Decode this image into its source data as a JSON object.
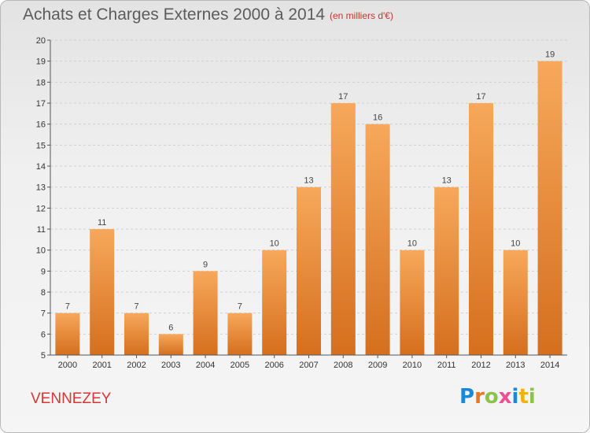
{
  "header": {
    "title": "Achats et Charges Externes 2000 à 2014",
    "subtitle": "(en milliers d'€)"
  },
  "footer": {
    "commune": "VENNEZEY",
    "brand": [
      "P",
      "r",
      "o",
      "x",
      "i",
      "t",
      "i"
    ]
  },
  "colors": {
    "bar_top": "#f7a85a",
    "bar_bottom": "#d56f1e",
    "axis": "#555555",
    "grid": "#cfcfcf",
    "title": "#5c5c5c",
    "commune": "#d53636"
  },
  "chart_data": {
    "type": "bar",
    "title": "Achats et Charges Externes 2000 à 2014",
    "subtitle": "(en milliers d'€)",
    "categories": [
      "2000",
      "2001",
      "2002",
      "2003",
      "2004",
      "2005",
      "2006",
      "2007",
      "2008",
      "2009",
      "2010",
      "2011",
      "2012",
      "2013",
      "2014"
    ],
    "values": [
      7,
      11,
      7,
      6,
      9,
      7,
      10,
      13,
      17,
      16,
      10,
      13,
      17,
      10,
      19
    ],
    "ylim": [
      5,
      20
    ],
    "yticks": [
      5,
      6,
      7,
      8,
      9,
      10,
      11,
      12,
      13,
      14,
      15,
      16,
      17,
      18,
      19,
      20
    ],
    "grid": true,
    "data_labels": true
  }
}
